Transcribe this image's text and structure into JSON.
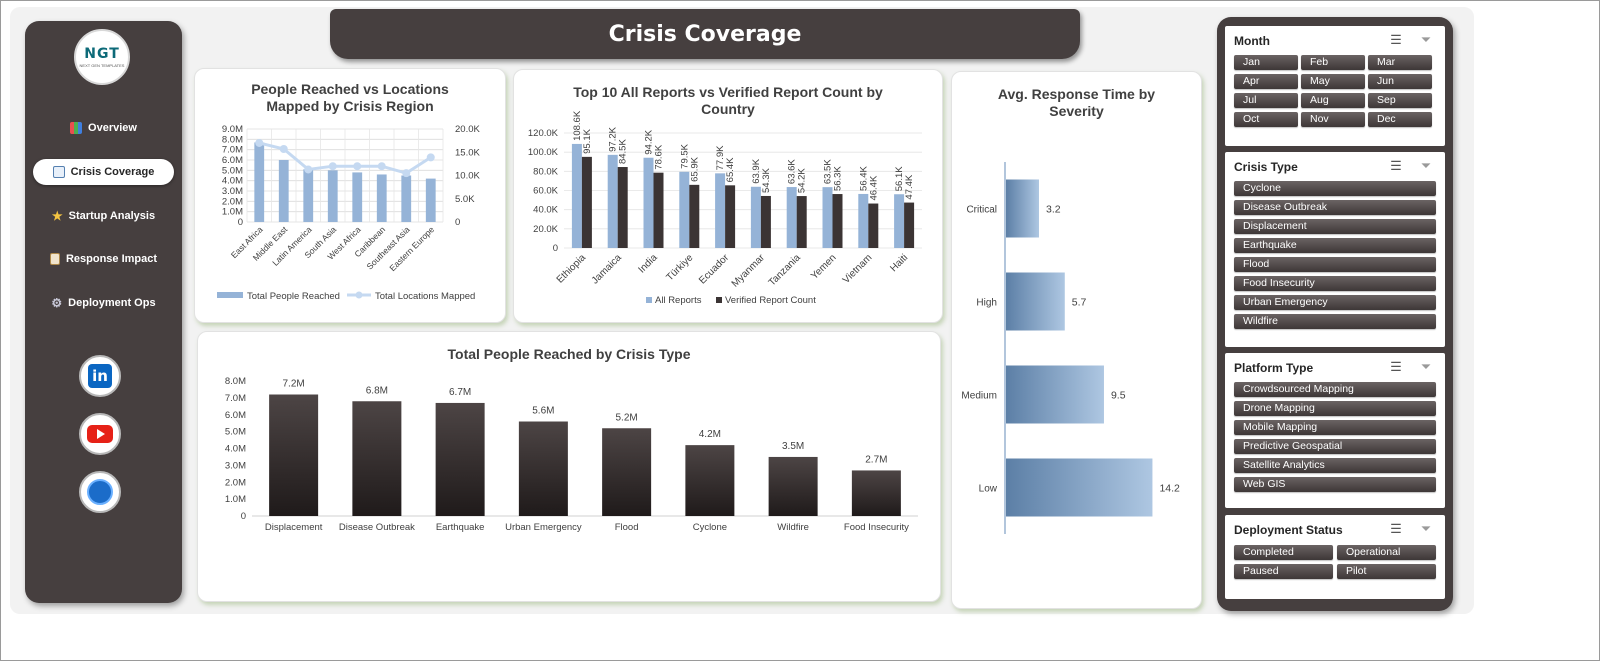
{
  "header": {
    "title": "Crisis Coverage"
  },
  "brand": {
    "logo_text": "NGT",
    "logo_subtext": "NEXT GEN TEMPLATES"
  },
  "sidebar": {
    "items": [
      {
        "label": "Overview",
        "icon": "bar-chart-icon",
        "active": false
      },
      {
        "label": "Crisis Coverage",
        "icon": "line-chart-icon",
        "active": true
      },
      {
        "label": "Startup Analysis",
        "icon": "star-icon",
        "active": false
      },
      {
        "label": "Response Impact",
        "icon": "clipboard-icon",
        "active": false
      },
      {
        "label": "Deployment Ops",
        "icon": "gear-icon",
        "active": false
      }
    ],
    "social": [
      {
        "name": "linkedin",
        "icon": "linkedin-icon",
        "text": "in"
      },
      {
        "name": "youtube",
        "icon": "youtube-icon"
      },
      {
        "name": "website",
        "icon": "globe-icon"
      }
    ]
  },
  "colors": {
    "dark": "#463f3f",
    "bar_dark": "#3b3434",
    "bar_blue": "#95b3d7",
    "line_light": "#c5d9f1",
    "accent_bar": "#6f93b8"
  },
  "chart_data": [
    {
      "id": "region",
      "type": "bar",
      "title": "People Reached vs Locations Mapped by Crisis Region",
      "categories": [
        "East Africa",
        "Middle East",
        "Latin America",
        "South Asia",
        "West Africa",
        "Caribbean",
        "Southeast Asia",
        "Eastern Europe"
      ],
      "series": [
        {
          "name": "Total People Reached",
          "type": "bar",
          "axis": "left",
          "values": [
            7.7,
            6.0,
            5.1,
            5.0,
            4.8,
            4.6,
            4.5,
            4.2
          ]
        },
        {
          "name": "Total Locations Mapped",
          "type": "line",
          "axis": "right",
          "values": [
            17.0,
            15.7,
            11.3,
            12.0,
            12.0,
            12.0,
            10.5,
            13.9
          ]
        }
      ],
      "left_ticks": [
        "0",
        "1.0M",
        "2.0M",
        "3.0M",
        "4.0M",
        "5.0M",
        "6.0M",
        "7.0M",
        "8.0M",
        "9.0M"
      ],
      "right_ticks": [
        "0",
        "5.0K",
        "10.0K",
        "15.0K",
        "20.0K"
      ],
      "ylim": [
        0,
        9
      ],
      "y2lim": [
        0,
        20
      ],
      "legend": "bottom"
    },
    {
      "id": "country",
      "type": "bar",
      "title": "Top 10 All Reports vs Verified Report Count by Country",
      "categories": [
        "Ethiopia",
        "Jamaica",
        "India",
        "Türkiye",
        "Ecuador",
        "Myanmar",
        "Tanzania",
        "Yemen",
        "Vietnam",
        "Haiti"
      ],
      "series": [
        {
          "name": "All Reports",
          "values": [
            108.6,
            97.2,
            94.2,
            79.5,
            77.9,
            63.9,
            63.6,
            63.5,
            56.4,
            56.1
          ],
          "labels": [
            "108.6K",
            "97.2K",
            "94.2K",
            "79.5K",
            "77.9K",
            "63.9K",
            "63.6K",
            "63.5K",
            "56.4K",
            "56.1K"
          ]
        },
        {
          "name": "Verified Report Count",
          "values": [
            95.1,
            84.5,
            78.6,
            65.9,
            65.4,
            54.3,
            54.2,
            56.3,
            46.4,
            47.4
          ],
          "labels": [
            "95.1K",
            "84.5K",
            "78.6K",
            "65.9K",
            "65.4K",
            "54.3K",
            "54.2K",
            "56.3K",
            "46.4K",
            "47.4K"
          ]
        }
      ],
      "ticks": [
        "0",
        "20.0K",
        "40.0K",
        "60.0K",
        "80.0K",
        "100.0K",
        "120.0K"
      ],
      "ylim": [
        0,
        120
      ],
      "legend": "bottom"
    },
    {
      "id": "severity",
      "type": "bar",
      "orientation": "horizontal",
      "title": "Avg. Response Time by Severity",
      "categories": [
        "Critical",
        "High",
        "Medium",
        "Low"
      ],
      "values": [
        3.2,
        5.7,
        9.5,
        14.2
      ],
      "labels": [
        "3.2",
        "5.7",
        "9.5",
        "14.2"
      ],
      "xlim": [
        0,
        16
      ]
    },
    {
      "id": "crisistype",
      "type": "bar",
      "title": "Total People Reached by Crisis Type",
      "categories": [
        "Displacement",
        "Disease Outbreak",
        "Earthquake",
        "Urban Emergency",
        "Flood",
        "Cyclone",
        "Wildfire",
        "Food Insecurity"
      ],
      "values": [
        7.2,
        6.8,
        6.7,
        5.6,
        5.2,
        4.2,
        3.5,
        2.7
      ],
      "labels": [
        "7.2M",
        "6.8M",
        "6.7M",
        "5.6M",
        "5.2M",
        "4.2M",
        "3.5M",
        "2.7M"
      ],
      "ticks": [
        "0",
        "1.0M",
        "2.0M",
        "3.0M",
        "4.0M",
        "5.0M",
        "6.0M",
        "7.0M",
        "8.0M"
      ],
      "ylim": [
        0,
        8
      ]
    }
  ],
  "slicers": [
    {
      "title": "Month",
      "columns": 3,
      "items": [
        "Jan",
        "Feb",
        "Mar",
        "Apr",
        "May",
        "Jun",
        "Jul",
        "Aug",
        "Sep",
        "Oct",
        "Nov",
        "Dec"
      ]
    },
    {
      "title": "Crisis Type",
      "columns": 1,
      "items": [
        "Cyclone",
        "Disease Outbreak",
        "Displacement",
        "Earthquake",
        "Flood",
        "Food Insecurity",
        "Urban Emergency",
        "Wildfire"
      ]
    },
    {
      "title": "Platform Type",
      "columns": 1,
      "items": [
        "Crowdsourced Mapping",
        "Drone Mapping",
        "Mobile Mapping",
        "Predictive Geospatial",
        "Satellite Analytics",
        "Web GIS"
      ]
    },
    {
      "title": "Deployment Status",
      "columns": 2,
      "items": [
        "Completed",
        "Operational",
        "Paused",
        "Pilot"
      ]
    }
  ]
}
